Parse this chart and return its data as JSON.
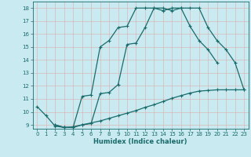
{
  "xlabel": "Humidex (Indice chaleur)",
  "bg_color": "#c8eaf0",
  "grid_color": "#d8b8b8",
  "line_color": "#1a6b6b",
  "xlim": [
    -0.5,
    23.5
  ],
  "ylim": [
    8.7,
    18.5
  ],
  "yticks": [
    9,
    10,
    11,
    12,
    13,
    14,
    15,
    16,
    17,
    18
  ],
  "xticks": [
    0,
    1,
    2,
    3,
    4,
    5,
    6,
    7,
    8,
    9,
    10,
    11,
    12,
    13,
    14,
    15,
    16,
    17,
    18,
    19,
    20,
    21,
    22,
    23
  ],
  "curve1_x": [
    0,
    1,
    2,
    3,
    4,
    5,
    6,
    7,
    8,
    9,
    10,
    11,
    12,
    13,
    14,
    15,
    16,
    17,
    18,
    19,
    20,
    21,
    22,
    23
  ],
  "curve1_y": [
    10.4,
    9.7,
    8.9,
    8.8,
    8.8,
    11.2,
    11.3,
    15.0,
    15.5,
    16.5,
    16.6,
    18.0,
    18.0,
    18.0,
    17.8,
    18.0,
    18.0,
    16.6,
    15.5,
    14.8,
    13.8,
    null,
    null,
    null
  ],
  "curve2_x": [
    0,
    1,
    2,
    3,
    4,
    5,
    6,
    7,
    8,
    9,
    10,
    11,
    12,
    13,
    14,
    15,
    16,
    17,
    18,
    19,
    20,
    21,
    22,
    23
  ],
  "curve2_y": [
    null,
    null,
    9.0,
    8.8,
    8.8,
    9.0,
    9.1,
    11.4,
    11.5,
    12.1,
    15.2,
    15.3,
    16.5,
    18.0,
    18.0,
    17.8,
    18.0,
    18.0,
    18.0,
    16.5,
    15.5,
    14.8,
    13.8,
    11.7
  ],
  "curve3_x": [
    0,
    1,
    2,
    3,
    4,
    5,
    6,
    7,
    8,
    9,
    10,
    11,
    12,
    13,
    14,
    15,
    16,
    17,
    18,
    19,
    20,
    21,
    22,
    23
  ],
  "curve3_y": [
    null,
    null,
    9.0,
    8.8,
    8.85,
    9.0,
    9.15,
    9.3,
    9.5,
    9.7,
    9.9,
    10.1,
    10.35,
    10.55,
    10.8,
    11.05,
    11.25,
    11.45,
    11.6,
    11.65,
    11.7,
    11.7,
    11.7,
    11.7
  ]
}
